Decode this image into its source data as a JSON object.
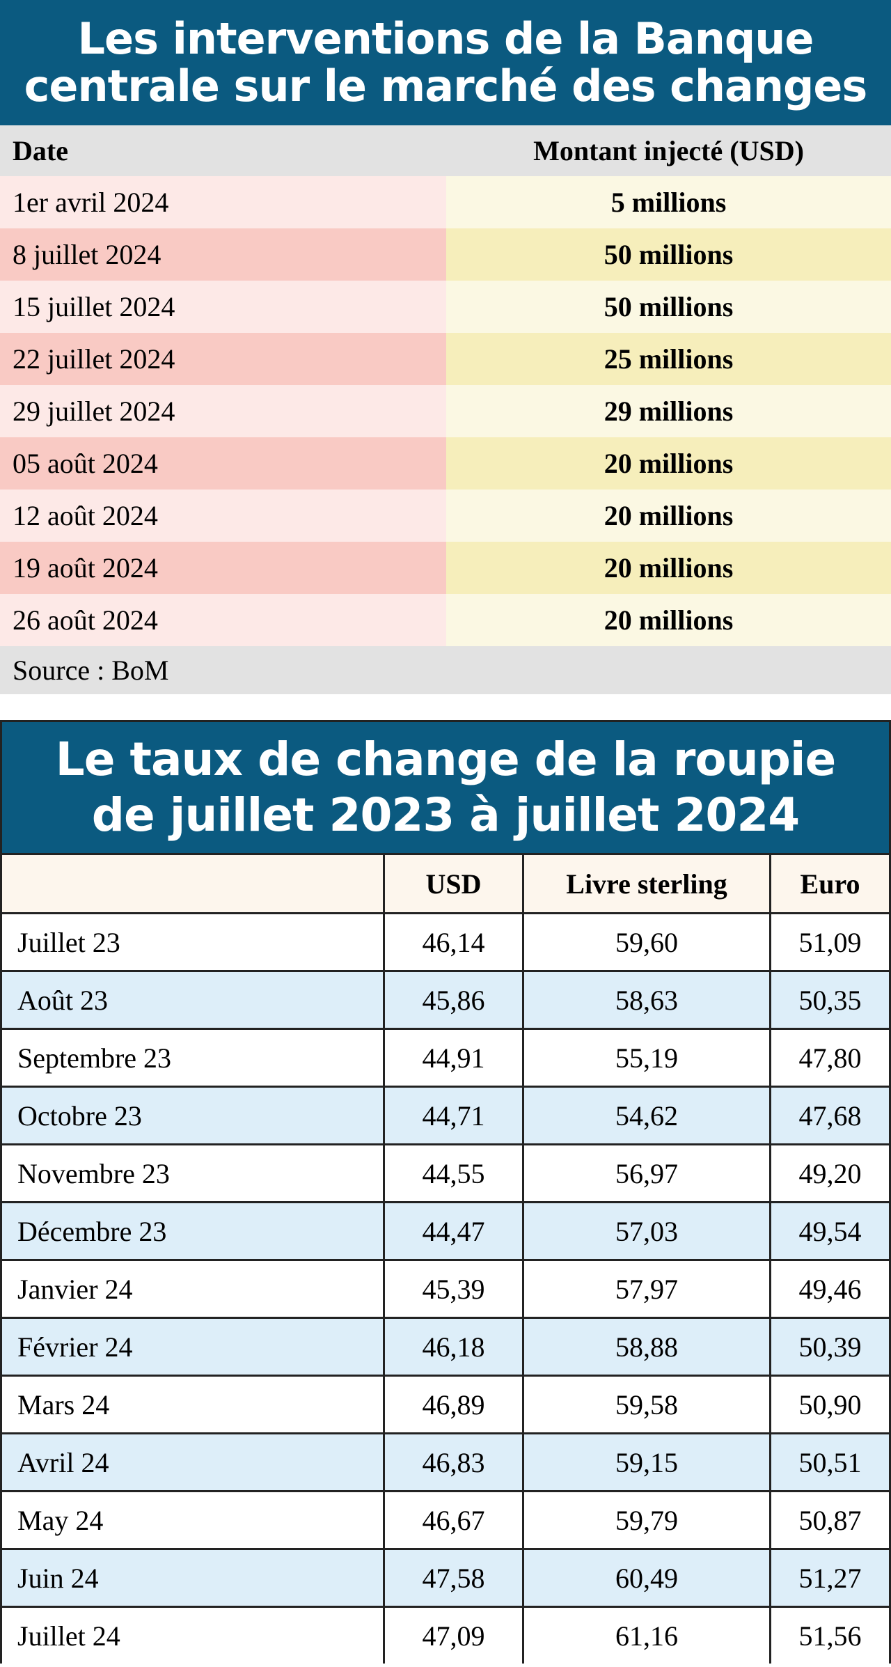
{
  "interventions": {
    "title_lines": [
      "Les interventions de la Banque",
      "centrale sur le marché des changes"
    ],
    "header": [
      "Date",
      "Montant injecté (USD)"
    ],
    "rows": [
      [
        "1er avril 2024",
        "5 millions"
      ],
      [
        "8 juillet 2024",
        "50 millions"
      ],
      [
        "15 juillet 2024",
        "50 millions"
      ],
      [
        "22 juillet 2024",
        "25 millions"
      ],
      [
        "29 juillet 2024",
        "29 millions"
      ],
      [
        "05 août 2024",
        "20 millions"
      ],
      [
        "12 août 2024",
        "20 millions"
      ],
      [
        "19 août 2024",
        "20 millions"
      ],
      [
        "26 août 2024",
        "20 millions"
      ]
    ],
    "source": "Source : BoM"
  },
  "exchange_rates": {
    "title_lines": [
      "Le taux de change de la roupie",
      "de juillet 2023 à juillet 2024"
    ],
    "header": [
      "USD",
      "Livre sterling",
      "Euro"
    ],
    "rows": [
      [
        "Juillet 23",
        "46,14",
        "59,60",
        "51,09"
      ],
      [
        "Août 23",
        "45,86",
        "58,63",
        "50,35"
      ],
      [
        "Septembre 23",
        "44,91",
        "55,19",
        "47,80"
      ],
      [
        "Octobre 23",
        "44,71",
        "54,62",
        "47,68"
      ],
      [
        "Novembre 23",
        "44,55",
        "56,97",
        "49,20"
      ],
      [
        "Décembre 23",
        "44,47",
        "57,03",
        "49,54"
      ],
      [
        "Janvier 24",
        "45,39",
        "57,97",
        "49,46"
      ],
      [
        "Février 24",
        "46,18",
        "58,88",
        "50,39"
      ],
      [
        "Mars 24",
        "46,89",
        "59,58",
        "50,90"
      ],
      [
        "Avril 24",
        "46,83",
        "59,15",
        "50,51"
      ],
      [
        "May 24",
        "46,67",
        "59,79",
        "50,87"
      ],
      [
        "Juin 24",
        "47,58",
        "60,49",
        "51,27"
      ],
      [
        "Juillet 24",
        "47,09",
        "61,16",
        "51,56"
      ]
    ]
  }
}
